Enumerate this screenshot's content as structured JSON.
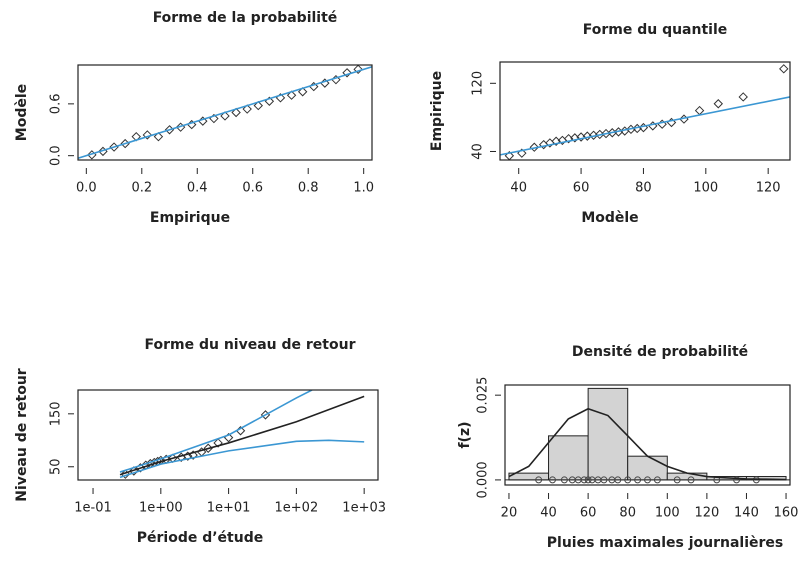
{
  "chart_data": [
    {
      "type": "scatter",
      "title": "Forme de la probabilité",
      "xlabel": "Empirique",
      "ylabel": "Modèle",
      "xlim": [
        -0.03,
        1.03
      ],
      "ylim": [
        -0.05,
        1.05
      ],
      "xticks": [
        {
          "value": 0,
          "label": "0.0"
        },
        {
          "value": 0.2,
          "label": "0.2"
        },
        {
          "value": 0.4,
          "label": "0.4"
        },
        {
          "value": 0.6,
          "label": "0.6"
        },
        {
          "value": 0.8,
          "label": "0.8"
        },
        {
          "value": 1,
          "label": "1.0"
        }
      ],
      "yticks": [
        {
          "value": 0,
          "label": "0.0"
        },
        {
          "value": 0.6,
          "label": "0.6"
        }
      ],
      "series": [
        {
          "style": "points",
          "color": "#333333",
          "x": [
            0.02,
            0.06,
            0.1,
            0.14,
            0.18,
            0.22,
            0.26,
            0.3,
            0.34,
            0.38,
            0.42,
            0.46,
            0.5,
            0.54,
            0.58,
            0.62,
            0.66,
            0.7,
            0.74,
            0.78,
            0.82,
            0.86,
            0.9,
            0.94,
            0.98
          ],
          "values": [
            0.01,
            0.05,
            0.1,
            0.14,
            0.22,
            0.24,
            0.22,
            0.3,
            0.33,
            0.36,
            0.4,
            0.43,
            0.46,
            0.5,
            0.54,
            0.58,
            0.63,
            0.67,
            0.7,
            0.74,
            0.8,
            0.84,
            0.88,
            0.96,
            1.0
          ]
        },
        {
          "style": "line",
          "color": "#3b97d3",
          "x": [
            -0.03,
            1.03
          ],
          "values": [
            -0.03,
            1.03
          ]
        }
      ]
    },
    {
      "type": "scatter",
      "title": "Forme du quantile",
      "xlabel": "Modèle",
      "ylabel": "Empirique",
      "xlim": [
        34,
        127
      ],
      "ylim": [
        30,
        145
      ],
      "xticks": [
        40,
        60,
        80,
        100,
        120
      ],
      "yticks": [
        40,
        120
      ],
      "series": [
        {
          "style": "points",
          "color": "#333333",
          "x": [
            37,
            41,
            45,
            48,
            50,
            52,
            54,
            56,
            58,
            60,
            62,
            64,
            66,
            68,
            70,
            72,
            74,
            76,
            78,
            80,
            83,
            86,
            89,
            93,
            98,
            104,
            112,
            125
          ],
          "values": [
            35,
            38,
            45,
            48,
            50,
            52,
            53,
            55,
            56,
            57,
            58,
            59,
            60,
            61,
            62,
            63,
            64,
            66,
            67,
            68,
            70,
            72,
            74,
            78,
            88,
            96,
            104,
            137
          ]
        },
        {
          "style": "line",
          "color": "#3b97d3",
          "x": [
            34,
            127
          ],
          "values": [
            36,
            104
          ]
        }
      ]
    },
    {
      "type": "scatter",
      "title": "Forme du niveau de retour",
      "xlabel": "Période d’étude",
      "ylabel": "Niveau de retour",
      "xlog": true,
      "xlim": [
        0.06,
        1600
      ],
      "ylim": [
        25,
        195
      ],
      "xticks": [
        {
          "value": 0.1,
          "label": "1e-01"
        },
        {
          "value": 1,
          "label": "1e+00"
        },
        {
          "value": 10,
          "label": "1e+01"
        },
        {
          "value": 100,
          "label": "1e+02"
        },
        {
          "value": 1000,
          "label": "1e+03"
        }
      ],
      "yticks": [
        50,
        150
      ],
      "series": [
        {
          "style": "points",
          "color": "#333333",
          "x": [
            0.3,
            0.4,
            0.5,
            0.6,
            0.7,
            0.8,
            0.9,
            1.0,
            1.2,
            1.5,
            2,
            2.5,
            3,
            4,
            5,
            7,
            10,
            15,
            35
          ],
          "values": [
            36,
            42,
            48,
            53,
            56,
            58,
            60,
            62,
            64,
            66,
            68,
            70,
            72,
            78,
            85,
            95,
            105,
            118,
            148
          ]
        },
        {
          "style": "line",
          "color": "#222222",
          "x": [
            0.25,
            1,
            10,
            100,
            1000
          ],
          "values": [
            35,
            60,
            95,
            135,
            183
          ]
        },
        {
          "style": "line",
          "color": "#3b97d3",
          "x": [
            0.25,
            1,
            10,
            100,
            170
          ],
          "values": [
            40,
            65,
            110,
            180,
            195
          ]
        },
        {
          "style": "line",
          "color": "#3b97d3",
          "x": [
            0.25,
            1,
            10,
            100,
            300,
            1000
          ],
          "values": [
            30,
            55,
            80,
            98,
            100,
            97
          ]
        }
      ]
    },
    {
      "type": "histogram",
      "title": "Densité de probabilité",
      "xlabel": "Pluies maximales journalières",
      "ylabel": "f(z)",
      "xlim": [
        18,
        162
      ],
      "ylim": [
        -0.0015,
        0.028
      ],
      "xticks": [
        20,
        40,
        60,
        80,
        100,
        120,
        140,
        160
      ],
      "yticks": [
        {
          "value": 0,
          "label": "0.000"
        },
        {
          "value": 0.025,
          "label": "0.025"
        }
      ],
      "bins": [
        20,
        40,
        60,
        80,
        100,
        120,
        140,
        160
      ],
      "values": [
        0.002,
        0.013,
        0.027,
        0.007,
        0.002,
        0.001,
        0.001
      ],
      "color": "#d3d3d3",
      "rug": [
        35,
        42,
        48,
        52,
        55,
        58,
        60,
        62,
        65,
        68,
        72,
        75,
        80,
        85,
        90,
        95,
        105,
        112,
        125,
        135,
        145
      ],
      "series": [
        {
          "style": "line",
          "color": "#222222",
          "x": [
            20,
            30,
            40,
            50,
            60,
            70,
            80,
            90,
            100,
            110,
            120,
            130,
            140,
            150,
            160
          ],
          "values": [
            0.001,
            0.004,
            0.011,
            0.018,
            0.021,
            0.019,
            0.013,
            0.007,
            0.004,
            0.002,
            0.001,
            0.0006,
            0.0003,
            0.0002,
            0.0001
          ]
        }
      ]
    }
  ]
}
